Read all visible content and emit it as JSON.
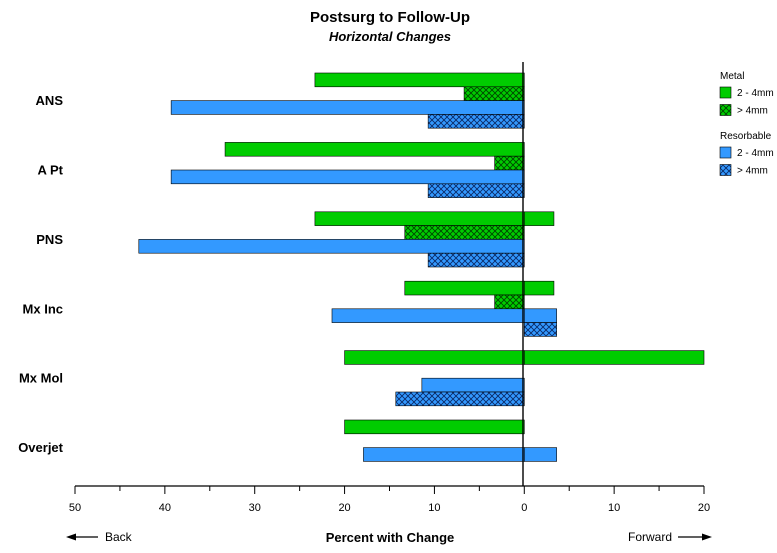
{
  "chart_data": {
    "type": "bar",
    "orientation": "horizontal",
    "title": "Postsurg to Follow-Up",
    "subtitle": "Horizontal Changes",
    "xlabel": "Percent with Change",
    "direction_left": "Back",
    "direction_right": "Forward",
    "x_tick_labels": [
      "50",
      "40",
      "30",
      "20",
      "10",
      "0",
      "10",
      "20"
    ],
    "xlim": [
      -50,
      20
    ],
    "grid": false,
    "legend_position": "right",
    "categories": [
      "ANS",
      "A Pt",
      "PNS",
      "Mx Inc",
      "Mx Mol",
      "Overjet"
    ],
    "legend_groups": [
      {
        "name": "Metal",
        "items": [
          {
            "label": "2 - 4mm",
            "color": "#00cc00",
            "pattern": "solid"
          },
          {
            "label": "> 4mm",
            "color": "#00cc00",
            "pattern": "crosshatch"
          }
        ]
      },
      {
        "name": "Resorbable",
        "items": [
          {
            "label": "2 - 4mm",
            "color": "#3399ff",
            "pattern": "solid"
          },
          {
            "label": "> 4mm",
            "color": "#3399ff",
            "pattern": "crosshatch"
          }
        ]
      }
    ],
    "series": [
      {
        "group": "Metal",
        "name": "2 - 4mm",
        "color": "#00cc00",
        "pattern": "solid",
        "values": [
          [
            -23.3,
            0
          ],
          [
            -33.3,
            0
          ],
          [
            -23.3,
            3.3
          ],
          [
            -13.3,
            3.3
          ],
          [
            -20,
            20
          ],
          [
            -20,
            0
          ]
        ]
      },
      {
        "group": "Metal",
        "name": "> 4mm",
        "color": "#00cc00",
        "pattern": "crosshatch",
        "values": [
          [
            -6.7,
            0
          ],
          [
            -3.3,
            0
          ],
          [
            -13.3,
            0
          ],
          [
            -3.3,
            0
          ],
          [
            0,
            0
          ],
          [
            0,
            0
          ]
        ]
      },
      {
        "group": "Resorbable",
        "name": "2 - 4mm",
        "color": "#3399ff",
        "pattern": "solid",
        "values": [
          [
            -39.3,
            0
          ],
          [
            -39.3,
            0
          ],
          [
            -42.9,
            0
          ],
          [
            -21.4,
            3.6
          ],
          [
            -11.4,
            0
          ],
          [
            -17.9,
            3.6
          ]
        ]
      },
      {
        "group": "Resorbable",
        "name": "> 4mm",
        "color": "#3399ff",
        "pattern": "crosshatch",
        "values": [
          [
            -10.7,
            0
          ],
          [
            -10.7,
            0
          ],
          [
            -10.7,
            0
          ],
          [
            0,
            3.6
          ],
          [
            -14.3,
            0
          ],
          [
            0,
            0
          ]
        ]
      }
    ]
  }
}
